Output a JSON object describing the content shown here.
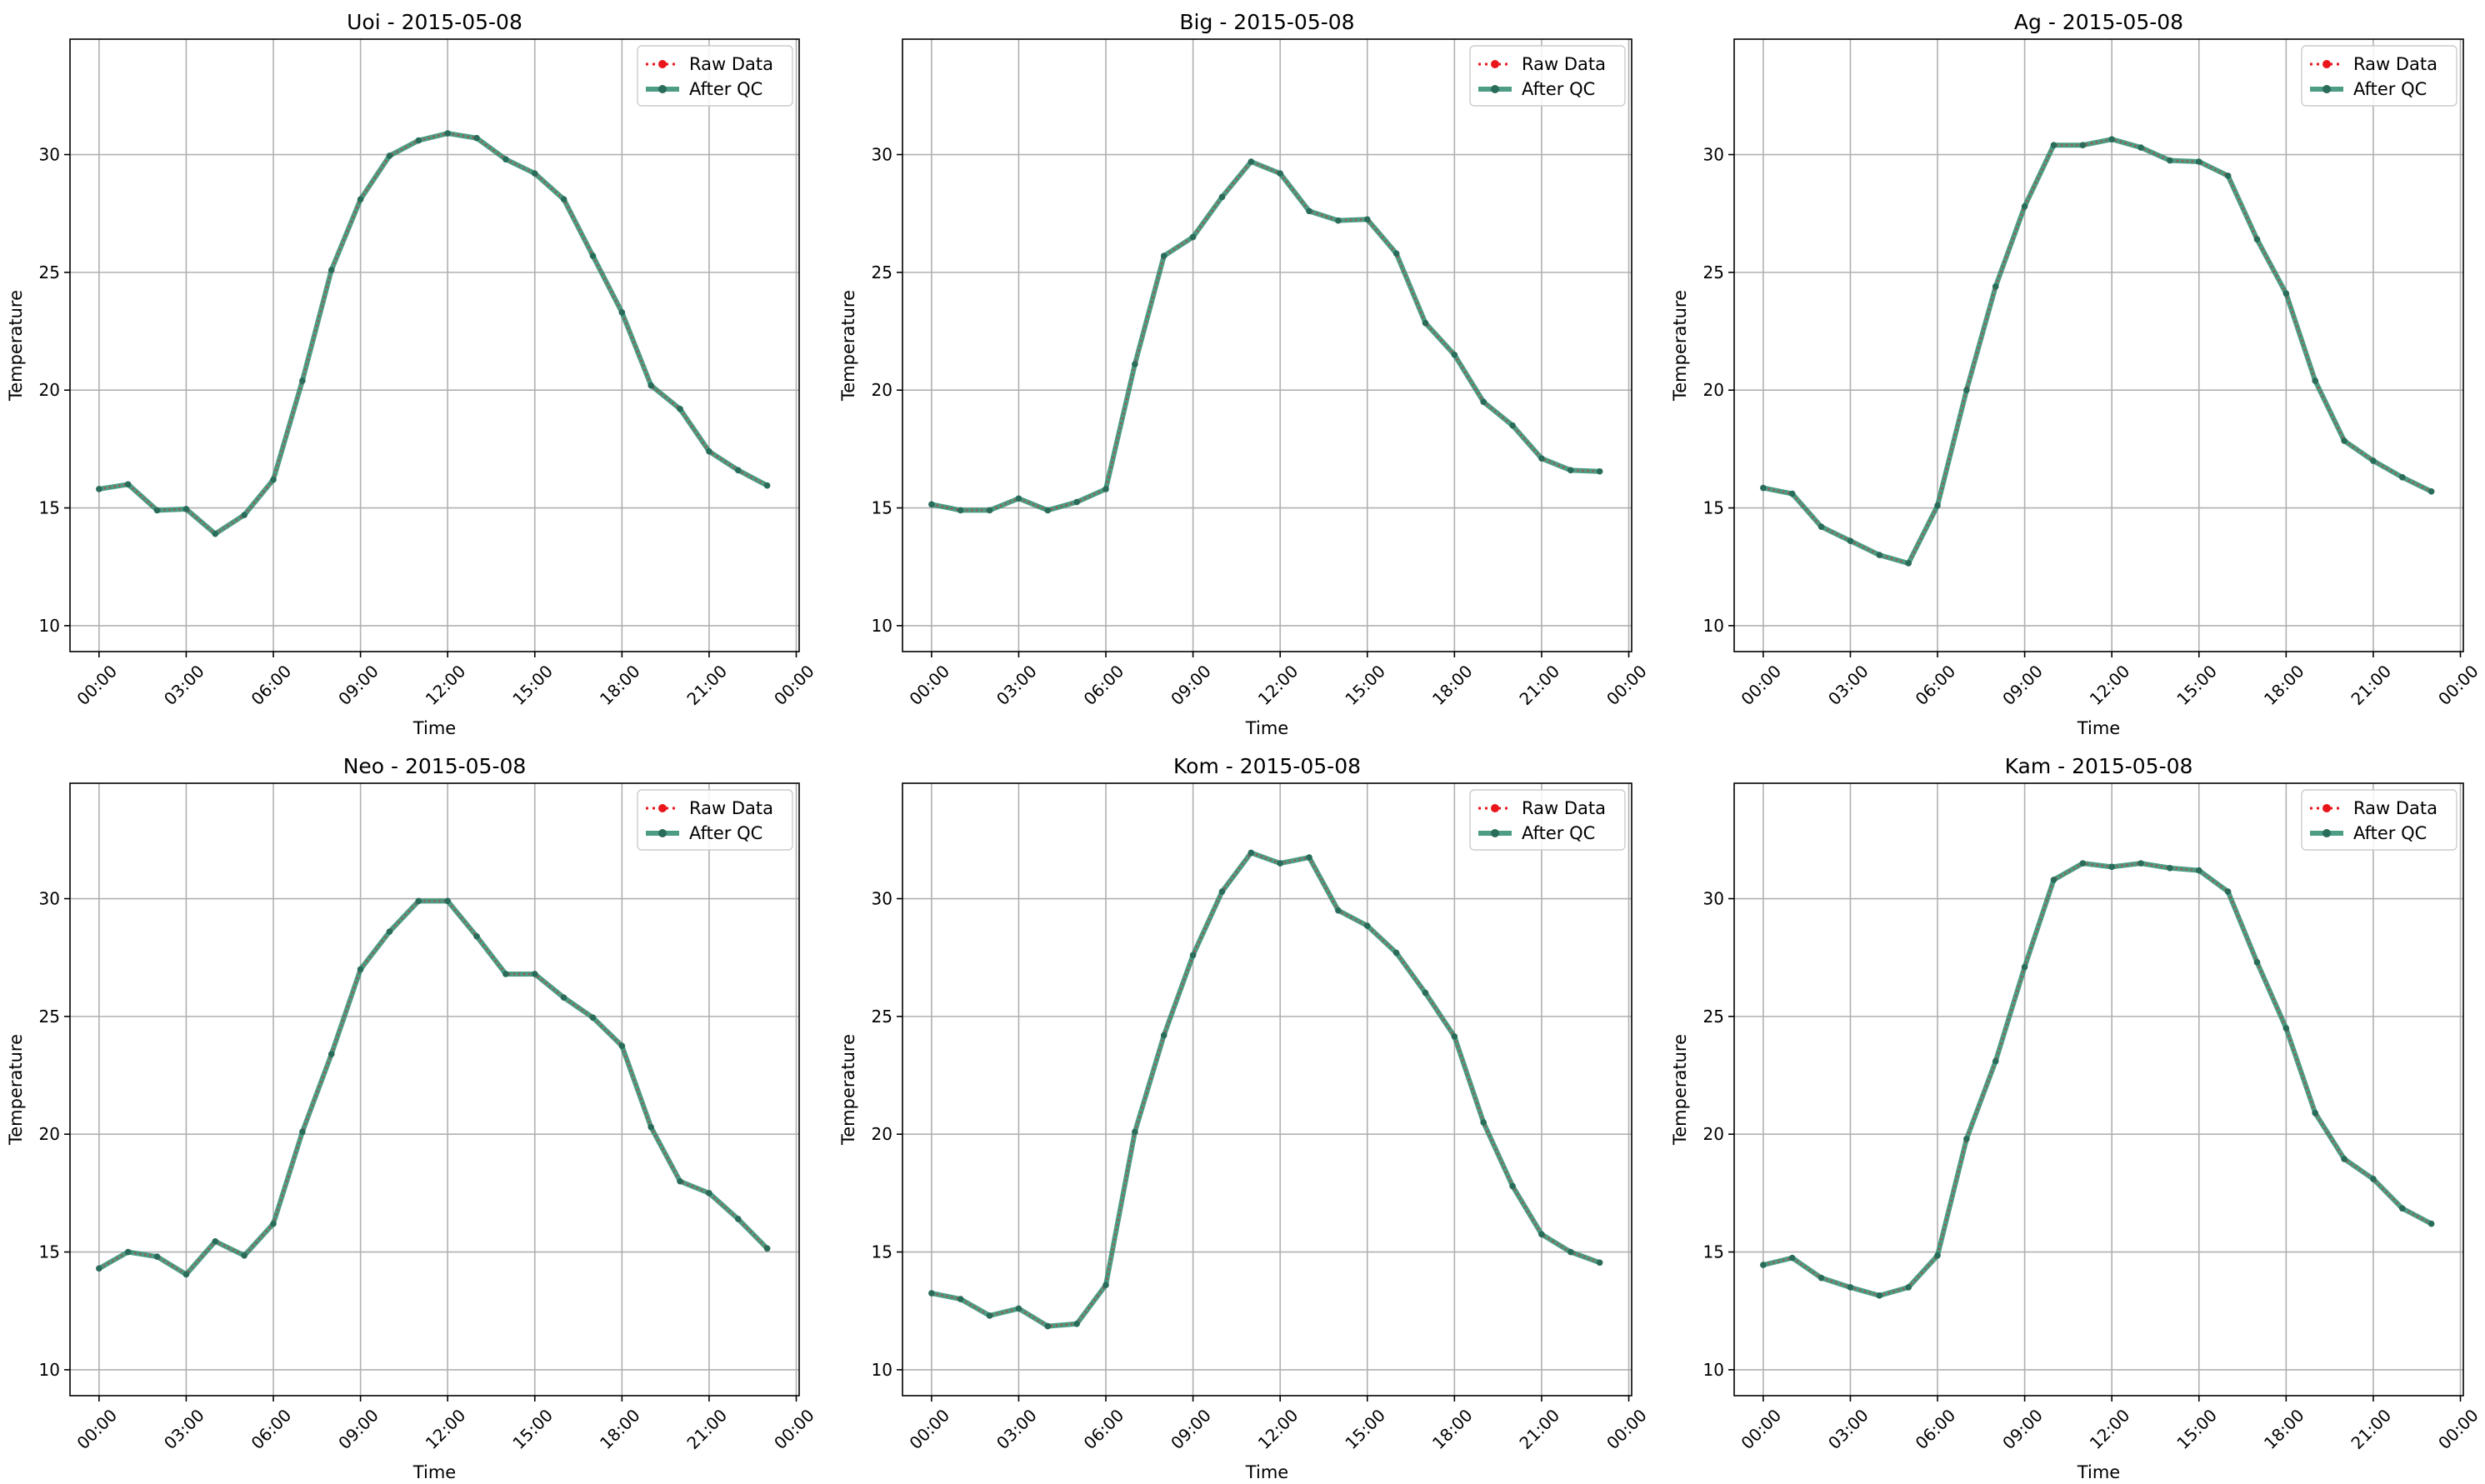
{
  "figure": {
    "date": "2015-05-08"
  },
  "colors": {
    "raw": "#e8161b",
    "after_qc": "#2e8b6f",
    "after_qc_marker": "#2a6c5a",
    "grid": "#b0b0b0"
  },
  "chart_data": [
    {
      "type": "line",
      "title": "Uoi - 2015-05-08",
      "xlabel": "Time",
      "ylabel": "Temperature",
      "xlim": [
        -1.0,
        24.1
      ],
      "ylim": [
        8.9,
        34.9
      ],
      "x_ticks": [
        "00:00",
        "03:00",
        "06:00",
        "09:00",
        "12:00",
        "15:00",
        "18:00",
        "21:00",
        "00:00"
      ],
      "y_ticks": [
        10,
        15,
        20,
        25,
        30
      ],
      "grid": true,
      "legend_position": "top-right",
      "x_hours": [
        0,
        1,
        2,
        3,
        4,
        5,
        6,
        7,
        8,
        9,
        10,
        11,
        12,
        13,
        14,
        15,
        16,
        17,
        18,
        19,
        20,
        21,
        22,
        23
      ],
      "series": [
        {
          "name": "Raw Data",
          "values": [
            15.8,
            16.0,
            14.9,
            14.95,
            13.9,
            14.7,
            16.2,
            20.4,
            25.1,
            28.1,
            29.95,
            30.6,
            30.9,
            30.7,
            29.8,
            29.2,
            28.1,
            25.7,
            23.3,
            20.2,
            19.2,
            17.4,
            16.6,
            15.95
          ]
        },
        {
          "name": "After QC",
          "values": [
            15.8,
            16.0,
            14.9,
            14.95,
            13.9,
            14.7,
            16.2,
            20.4,
            25.1,
            28.1,
            29.95,
            30.6,
            30.9,
            30.7,
            29.8,
            29.2,
            28.1,
            25.7,
            23.3,
            20.2,
            19.2,
            17.4,
            16.6,
            15.95
          ]
        }
      ]
    },
    {
      "type": "line",
      "title": "Big - 2015-05-08",
      "xlabel": "Time",
      "ylabel": "Temperature",
      "xlim": [
        -1.0,
        24.1
      ],
      "ylim": [
        8.9,
        34.9
      ],
      "x_ticks": [
        "00:00",
        "03:00",
        "06:00",
        "09:00",
        "12:00",
        "15:00",
        "18:00",
        "21:00",
        "00:00"
      ],
      "y_ticks": [
        10,
        15,
        20,
        25,
        30
      ],
      "grid": true,
      "legend_position": "top-right",
      "x_hours": [
        0,
        1,
        2,
        3,
        4,
        5,
        6,
        7,
        8,
        9,
        10,
        11,
        12,
        13,
        14,
        15,
        16,
        17,
        18,
        19,
        20,
        21,
        22,
        23
      ],
      "series": [
        {
          "name": "Raw Data",
          "values": [
            15.15,
            14.9,
            14.9,
            15.4,
            14.9,
            15.25,
            15.8,
            21.1,
            25.7,
            26.5,
            28.2,
            29.7,
            29.2,
            27.6,
            27.2,
            27.25,
            25.8,
            22.85,
            21.5,
            19.5,
            18.5,
            17.1,
            16.6,
            16.55
          ]
        },
        {
          "name": "After QC",
          "values": [
            15.15,
            14.9,
            14.9,
            15.4,
            14.9,
            15.25,
            15.8,
            21.1,
            25.7,
            26.5,
            28.2,
            29.7,
            29.2,
            27.6,
            27.2,
            27.25,
            25.8,
            22.85,
            21.5,
            19.5,
            18.5,
            17.1,
            16.6,
            16.55
          ]
        }
      ]
    },
    {
      "type": "line",
      "title": "Ag - 2015-05-08",
      "xlabel": "Time",
      "ylabel": "Temperature",
      "xlim": [
        -1.0,
        24.1
      ],
      "ylim": [
        8.9,
        34.9
      ],
      "x_ticks": [
        "00:00",
        "03:00",
        "06:00",
        "09:00",
        "12:00",
        "15:00",
        "18:00",
        "21:00",
        "00:00"
      ],
      "y_ticks": [
        10,
        15,
        20,
        25,
        30
      ],
      "grid": true,
      "legend_position": "top-right",
      "x_hours": [
        0,
        1,
        2,
        3,
        4,
        5,
        6,
        7,
        8,
        9,
        10,
        11,
        12,
        13,
        14,
        15,
        16,
        17,
        18,
        19,
        20,
        21,
        22,
        23
      ],
      "series": [
        {
          "name": "Raw Data",
          "values": [
            15.85,
            15.6,
            14.2,
            13.6,
            13.0,
            12.65,
            15.1,
            20.0,
            24.4,
            27.8,
            30.4,
            30.4,
            30.65,
            30.3,
            29.75,
            29.7,
            29.1,
            26.4,
            24.1,
            20.4,
            17.85,
            17.0,
            16.3,
            15.7
          ]
        },
        {
          "name": "After QC",
          "values": [
            15.85,
            15.6,
            14.2,
            13.6,
            13.0,
            12.65,
            15.1,
            20.0,
            24.4,
            27.8,
            30.4,
            30.4,
            30.65,
            30.3,
            29.75,
            29.7,
            29.1,
            26.4,
            24.1,
            20.4,
            17.85,
            17.0,
            16.3,
            15.7
          ]
        }
      ]
    },
    {
      "type": "line",
      "title": "Neo - 2015-05-08",
      "xlabel": "Time",
      "ylabel": "Temperature",
      "xlim": [
        -1.0,
        24.1
      ],
      "ylim": [
        8.9,
        34.9
      ],
      "x_ticks": [
        "00:00",
        "03:00",
        "06:00",
        "09:00",
        "12:00",
        "15:00",
        "18:00",
        "21:00",
        "00:00"
      ],
      "y_ticks": [
        10,
        15,
        20,
        25,
        30
      ],
      "grid": true,
      "legend_position": "top-right",
      "x_hours": [
        0,
        1,
        2,
        3,
        4,
        5,
        6,
        7,
        8,
        9,
        10,
        11,
        12,
        13,
        14,
        15,
        16,
        17,
        18,
        19,
        20,
        21,
        22,
        23
      ],
      "series": [
        {
          "name": "Raw Data",
          "values": [
            14.3,
            15.0,
            14.8,
            14.05,
            15.45,
            14.85,
            16.2,
            20.1,
            23.4,
            27.0,
            28.6,
            29.9,
            29.9,
            28.4,
            26.8,
            26.8,
            25.8,
            24.95,
            23.75,
            20.3,
            18.0,
            17.5,
            16.4,
            15.15
          ]
        },
        {
          "name": "After QC",
          "values": [
            14.3,
            15.0,
            14.8,
            14.05,
            15.45,
            14.85,
            16.2,
            20.1,
            23.4,
            27.0,
            28.6,
            29.9,
            29.9,
            28.4,
            26.8,
            26.8,
            25.8,
            24.95,
            23.75,
            20.3,
            18.0,
            17.5,
            16.4,
            15.15
          ]
        }
      ]
    },
    {
      "type": "line",
      "title": "Kom - 2015-05-08",
      "xlabel": "Time",
      "ylabel": "Temperature",
      "xlim": [
        -1.0,
        24.1
      ],
      "ylim": [
        8.9,
        34.9
      ],
      "x_ticks": [
        "00:00",
        "03:00",
        "06:00",
        "09:00",
        "12:00",
        "15:00",
        "18:00",
        "21:00",
        "00:00"
      ],
      "y_ticks": [
        10,
        15,
        20,
        25,
        30
      ],
      "grid": true,
      "legend_position": "top-right",
      "x_hours": [
        0,
        1,
        2,
        3,
        4,
        5,
        6,
        7,
        8,
        9,
        10,
        11,
        12,
        13,
        14,
        15,
        16,
        17,
        18,
        19,
        20,
        21,
        22,
        23
      ],
      "series": [
        {
          "name": "Raw Data",
          "values": [
            13.25,
            13.0,
            12.3,
            12.6,
            11.85,
            11.95,
            13.6,
            20.1,
            24.2,
            27.6,
            30.3,
            31.95,
            31.5,
            31.75,
            29.5,
            28.85,
            27.7,
            26.0,
            24.15,
            20.5,
            17.8,
            15.75,
            15.0,
            14.55
          ]
        },
        {
          "name": "After QC",
          "values": [
            13.25,
            13.0,
            12.3,
            12.6,
            11.85,
            11.95,
            13.6,
            20.1,
            24.2,
            27.6,
            30.3,
            31.95,
            31.5,
            31.75,
            29.5,
            28.85,
            27.7,
            26.0,
            24.15,
            20.5,
            17.8,
            15.75,
            15.0,
            14.55
          ]
        }
      ]
    },
    {
      "type": "line",
      "title": "Kam - 2015-05-08",
      "xlabel": "Time",
      "ylabel": "Temperature",
      "xlim": [
        -1.0,
        24.1
      ],
      "ylim": [
        8.9,
        34.9
      ],
      "x_ticks": [
        "00:00",
        "03:00",
        "06:00",
        "09:00",
        "12:00",
        "15:00",
        "18:00",
        "21:00",
        "00:00"
      ],
      "y_ticks": [
        10,
        15,
        20,
        25,
        30
      ],
      "grid": true,
      "legend_position": "top-right",
      "x_hours": [
        0,
        1,
        2,
        3,
        4,
        5,
        6,
        7,
        8,
        9,
        10,
        11,
        12,
        13,
        14,
        15,
        16,
        17,
        18,
        19,
        20,
        21,
        22,
        23
      ],
      "series": [
        {
          "name": "Raw Data",
          "values": [
            14.45,
            14.75,
            13.9,
            13.5,
            13.15,
            13.5,
            14.85,
            19.8,
            23.1,
            27.1,
            30.8,
            31.5,
            31.35,
            31.5,
            31.3,
            31.2,
            30.3,
            27.3,
            24.5,
            20.9,
            18.95,
            18.1,
            16.85,
            16.2
          ]
        },
        {
          "name": "After QC",
          "values": [
            14.45,
            14.75,
            13.9,
            13.5,
            13.15,
            13.5,
            14.85,
            19.8,
            23.1,
            27.1,
            30.8,
            31.5,
            31.35,
            31.5,
            31.3,
            31.2,
            30.3,
            27.3,
            24.5,
            20.9,
            18.95,
            18.1,
            16.85,
            16.2
          ]
        }
      ]
    }
  ]
}
